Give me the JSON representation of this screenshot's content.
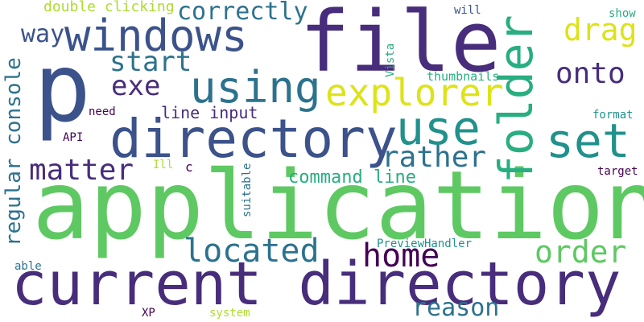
{
  "words": {
    "application": "application",
    "current_directory": "current directory",
    "file": "file",
    "p": "p",
    "directory": "directory",
    "windows": "windows",
    "using": "using",
    "explorer": "explorer",
    "use": "use",
    "folder": "folder",
    "set": "set",
    "matter": "matter",
    "located": "located",
    "start": "start",
    "exe": "exe",
    "rather": "rather",
    "home": "home",
    "order": "order",
    "reason": "reason",
    "drag": "drag",
    "onto": "onto",
    "way": "way",
    "correctly": "correctly",
    "regular_console": "regular console",
    "command_line": "command line",
    "line_input": "line input",
    "double_clicking": "double clicking",
    "thumbnails": "thumbnails",
    "vista": "Vista",
    "will": "will",
    "show": "show",
    "need": "need",
    "api": "API",
    "format": "format",
    "ill": "Ill",
    "c": "c",
    "target": "target",
    "suitable": "suitable",
    "previewhandler": "PreviewHandler",
    "able": "able",
    "xp": "XP",
    "system": "system"
  },
  "palette": {
    "dark_purple": "#440154",
    "indigo": "#472d7b",
    "blue_purple": "#3b528b",
    "steel_blue": "#2c728e",
    "teal": "#21918c",
    "sea_green": "#28ae80",
    "green": "#5ec962",
    "lime": "#addc30",
    "yellow": "#dde318"
  }
}
